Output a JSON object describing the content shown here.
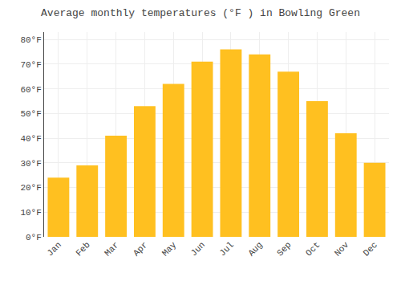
{
  "chart_data": {
    "type": "bar",
    "title": "Average monthly temperatures (°F ) in Bowling Green",
    "categories": [
      "Jan",
      "Feb",
      "Mar",
      "Apr",
      "May",
      "Jun",
      "Jul",
      "Aug",
      "Sep",
      "Oct",
      "Nov",
      "Dec"
    ],
    "values": [
      24,
      29,
      41,
      53,
      62,
      71,
      76,
      74,
      67,
      55,
      42,
      30
    ],
    "color": "#FFC020",
    "ylim": [
      0,
      83
    ],
    "yticks": [
      {
        "value": 0,
        "label": "0°F"
      },
      {
        "value": 10,
        "label": "10°F"
      },
      {
        "value": 20,
        "label": "20°F"
      },
      {
        "value": 30,
        "label": "30°F"
      },
      {
        "value": 40,
        "label": "40°F"
      },
      {
        "value": 50,
        "label": "50°F"
      },
      {
        "value": 60,
        "label": "60°F"
      },
      {
        "value": 70,
        "label": "70°F"
      },
      {
        "value": 80,
        "label": "80°F"
      }
    ],
    "grid": true
  }
}
